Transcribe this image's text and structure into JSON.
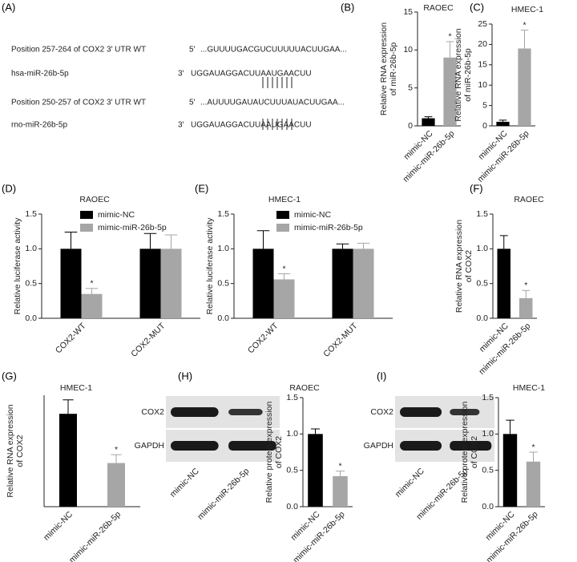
{
  "panel_a": {
    "panel": "(A)",
    "rows": [
      {
        "label": "Position 257-264 of COX2 3′ UTR WT",
        "prime": "5′",
        "seq": "...GUUUUGACGUCUUUUUACUUGAA..."
      },
      {
        "label": "hsa-miR-26b-5p",
        "prime": "3′",
        "seq": "UGGAUAGGACUUAAUGAACUU"
      },
      {
        "label": "Position 250-257 of COX2 3′ UTR WT",
        "prime": "5′",
        "seq": "...AUUUUGAUAUCUUUAUACUUGAA..."
      },
      {
        "label": "rno-miR-26b-5p",
        "prime": "3′",
        "seq": "UGGAUAGGACUUAAUGAACUU"
      }
    ]
  },
  "blots": [
    {
      "rows": [
        "COX2",
        "GAPDH"
      ],
      "lanes": [
        "mimic-NC",
        "mimic-miR-26b-5p"
      ]
    },
    {
      "rows": [
        "COX2",
        "GAPDH"
      ],
      "lanes": [
        "mimic-NC",
        "mimic-miR-26b-5p"
      ]
    }
  ],
  "chart_data": [
    {
      "type": "bar",
      "panel": "(B)",
      "title": "RAOEC",
      "ylabel": [
        "Relative RNA expression",
        "of miR-26b-5p"
      ],
      "categories": [
        "mimic-NC",
        "mimic-miR-26b-5p"
      ],
      "values": [
        1,
        9
      ],
      "errors": [
        0.2,
        2.1
      ],
      "significance": [
        null,
        "*"
      ],
      "colors": [
        "#000000",
        "#a6a6a6"
      ],
      "ylim": [
        0,
        15
      ],
      "yticks": [
        0,
        5,
        10,
        15
      ]
    },
    {
      "type": "bar",
      "panel": "(C)",
      "title": "HMEC-1",
      "ylabel": [
        "Relative RNA expression",
        "of miR-26b-5p"
      ],
      "categories": [
        "mimic-NC",
        "mimic-miR-26b-5p"
      ],
      "values": [
        1,
        19
      ],
      "errors": [
        0.4,
        4.5
      ],
      "significance": [
        null,
        "*"
      ],
      "colors": [
        "#000000",
        "#a6a6a6"
      ],
      "ylim": [
        0,
        25
      ],
      "yticks": [
        0,
        5,
        10,
        15,
        20,
        25
      ]
    },
    {
      "type": "grouped-bar",
      "panel": "(D)",
      "title": "RAOEC",
      "ylabel": [
        "Relative luciferase activity"
      ],
      "categories": [
        "COX2-WT",
        "COX2-MUT"
      ],
      "series": [
        {
          "name": "mimic-NC",
          "color": "#000000",
          "values": [
            1.0,
            1.0
          ],
          "errors": [
            0.24,
            0.22
          ],
          "significance": [
            null,
            null
          ]
        },
        {
          "name": "mimic-miR-26b-5p",
          "color": "#a6a6a6",
          "values": [
            0.35,
            1.0
          ],
          "errors": [
            0.08,
            0.2
          ],
          "significance": [
            "*",
            null
          ]
        }
      ],
      "ylim": [
        0,
        1.5
      ],
      "yticks": [
        {
          "value": 0,
          "label": "0.0"
        },
        {
          "value": 0.5,
          "label": "0.5"
        },
        {
          "value": 1,
          "label": "1.0"
        },
        {
          "value": 1.5,
          "label": "1.5"
        }
      ],
      "legend": "top"
    },
    {
      "type": "grouped-bar",
      "panel": "(E)",
      "title": "HMEC-1",
      "ylabel": [
        "Relative luciferase activity"
      ],
      "categories": [
        "COX2-WT",
        "COX2-MUT"
      ],
      "series": [
        {
          "name": "mimic-NC",
          "color": "#000000",
          "values": [
            1.0,
            1.0
          ],
          "errors": [
            0.26,
            0.07
          ],
          "significance": [
            null,
            null
          ]
        },
        {
          "name": "mimic-miR-26b-5p",
          "color": "#a6a6a6",
          "values": [
            0.56,
            1.0
          ],
          "errors": [
            0.08,
            0.08
          ],
          "significance": [
            "*",
            null
          ]
        }
      ],
      "ylim": [
        0,
        1.5
      ],
      "yticks": [
        {
          "value": 0,
          "label": "0.0"
        },
        {
          "value": 0.5,
          "label": "0.5"
        },
        {
          "value": 1,
          "label": "1.0"
        },
        {
          "value": 1.5,
          "label": "1.5"
        }
      ],
      "legend": "top"
    },
    {
      "type": "bar",
      "panel": "(F)",
      "title": "RAOEC",
      "ylabel": [
        "Relative RNA expression",
        "of COX2"
      ],
      "categories": [
        "mimic-NC",
        "mimic-miR-26b-5p"
      ],
      "values": [
        1.0,
        0.29
      ],
      "errors": [
        0.19,
        0.11
      ],
      "significance": [
        null,
        "*"
      ],
      "colors": [
        "#000000",
        "#a6a6a6"
      ],
      "ylim": [
        0,
        1.5
      ],
      "yticks": [
        {
          "value": 0,
          "label": "0.0"
        },
        {
          "value": 0.5,
          "label": "0.5"
        },
        {
          "value": 1,
          "label": "1.0"
        },
        {
          "value": 1.5,
          "label": "1.5"
        }
      ]
    },
    {
      "type": "bar",
      "panel": "(G)",
      "title": "HMEC-1",
      "ylabel": [
        "Relative RNA expression",
        "of COX2"
      ],
      "categories": [
        "mimic-NC",
        "mimic-miR-26b-5p"
      ],
      "values": [
        1.0,
        0.47
      ],
      "errors": [
        0.15,
        0.09
      ],
      "significance": [
        null,
        "*"
      ],
      "colors": [
        "#000000",
        "#a6a6a6"
      ],
      "ylim": [
        0,
        1.2
      ]
    },
    {
      "type": "bar",
      "panel": "(H)",
      "title": "RAOEC",
      "ylabel": [
        "Relative protein expression",
        "of COX2"
      ],
      "categories": [
        "mimic-NC",
        "mimic-miR-26b-5p"
      ],
      "values": [
        1.0,
        0.42
      ],
      "errors": [
        0.07,
        0.07
      ],
      "significance": [
        null,
        "*"
      ],
      "colors": [
        "#000000",
        "#a6a6a6"
      ],
      "ylim": [
        0,
        1.5
      ],
      "yticks": [
        {
          "value": 0,
          "label": "0.0"
        },
        {
          "value": 0.5,
          "label": "0.5"
        },
        {
          "value": 1,
          "label": "1.0"
        },
        {
          "value": 1.5,
          "label": "1.5"
        }
      ]
    },
    {
      "type": "bar",
      "panel": "(I)",
      "title": "HMEC-1",
      "ylabel": [
        "Relative protein expression",
        "of COX2"
      ],
      "categories": [
        "mimic-NC",
        "mimic-miR-26b-5p"
      ],
      "values": [
        1.0,
        0.62
      ],
      "errors": [
        0.19,
        0.13
      ],
      "significance": [
        null,
        "*"
      ],
      "colors": [
        "#000000",
        "#a6a6a6"
      ],
      "ylim": [
        0,
        1.5
      ],
      "yticks": [
        {
          "value": 0,
          "label": "0.0"
        },
        {
          "value": 0.5,
          "label": "0.5"
        },
        {
          "value": 1,
          "label": "1.0"
        },
        {
          "value": 1.5,
          "label": "1.5"
        }
      ]
    }
  ]
}
